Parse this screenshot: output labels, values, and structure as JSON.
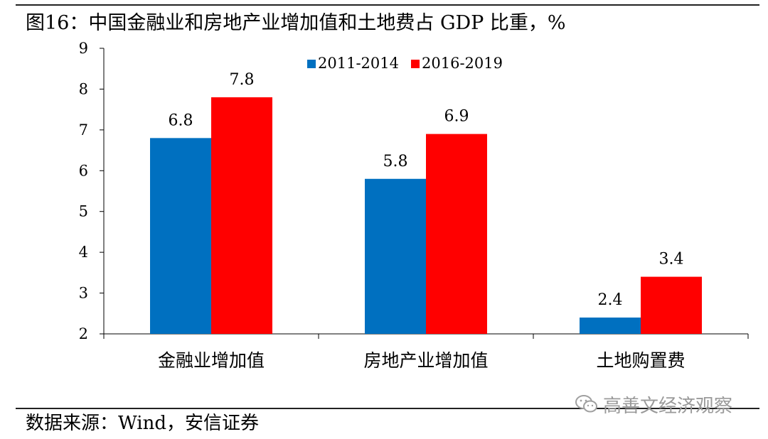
{
  "title": "图16：中国金融业和房地产业增加值和土地费占 GDP 比重，%",
  "source": "数据来源：Wind，安信证券",
  "watermark": "高善文经济观察",
  "colors": {
    "series1": "#0070C0",
    "series2": "#FF0000",
    "axis": "#000000"
  },
  "chart_data": {
    "type": "bar",
    "categories": [
      "金融业增加值",
      "房地产业增加值",
      "土地购置费"
    ],
    "series": [
      {
        "name": "2011-2014",
        "values": [
          6.8,
          5.8,
          2.4
        ]
      },
      {
        "name": "2016-2019",
        "values": [
          7.8,
          6.9,
          3.4
        ]
      }
    ],
    "y_ticks": [
      2,
      3,
      4,
      5,
      6,
      7,
      8,
      9
    ],
    "ylim": [
      2,
      9
    ],
    "grid": false,
    "legend_position": "top-right",
    "data_labels": true
  }
}
